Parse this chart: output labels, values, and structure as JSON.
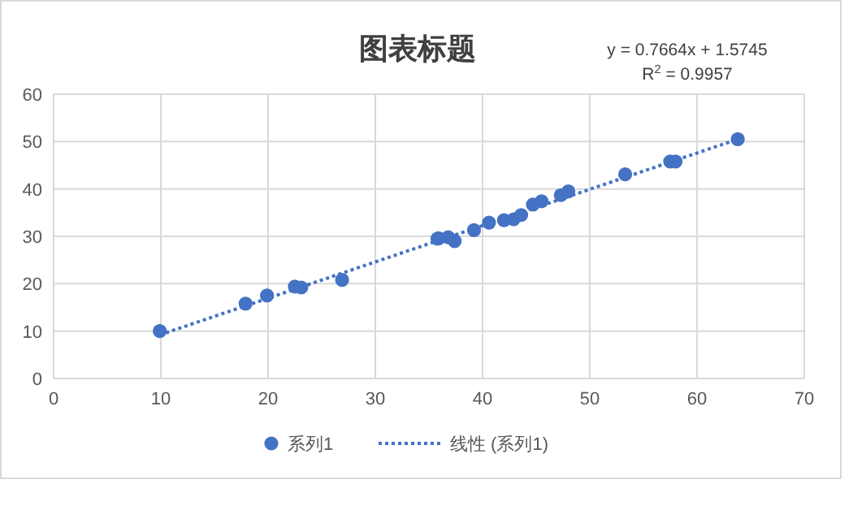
{
  "chart_data": {
    "type": "scatter",
    "title": "图表标题",
    "annotations": [
      "y = 0.7664x + 1.5745",
      "R$^{2}$ = 0.9957"
    ],
    "xlim": [
      0,
      70
    ],
    "ylim": [
      0,
      60
    ],
    "xticks": [
      0,
      10,
      20,
      30,
      40,
      50,
      60,
      70
    ],
    "yticks": [
      0,
      10,
      20,
      30,
      40,
      50,
      60
    ],
    "grid": true,
    "legend": "bottom",
    "x": [
      9.9,
      17.9,
      19.9,
      22.5,
      23.1,
      26.9,
      35.8,
      35.9,
      36.8,
      37.4,
      39.2,
      40.6,
      42,
      42.9,
      43.6,
      44.7,
      45.5,
      47.3,
      48,
      53.3,
      57.5,
      58,
      63.8
    ],
    "series": [
      {
        "name": "系列1",
        "color": "#4472c4",
        "marker": "circle",
        "values": [
          10,
          15.8,
          17.5,
          19.4,
          19.2,
          20.8,
          29.5,
          29.6,
          29.8,
          29,
          31.3,
          32.9,
          33.4,
          33.6,
          34.5,
          36.7,
          37.4,
          38.7,
          39.5,
          43.1,
          45.8,
          45.8,
          50.5
        ]
      },
      {
        "name": "线性 (系列1)",
        "type": "line",
        "line_style": "dotted",
        "marker": "none",
        "color": "#4472c4",
        "x": [
          9.9,
          63.8
        ],
        "values": [
          9.2,
          50.5
        ]
      }
    ]
  }
}
